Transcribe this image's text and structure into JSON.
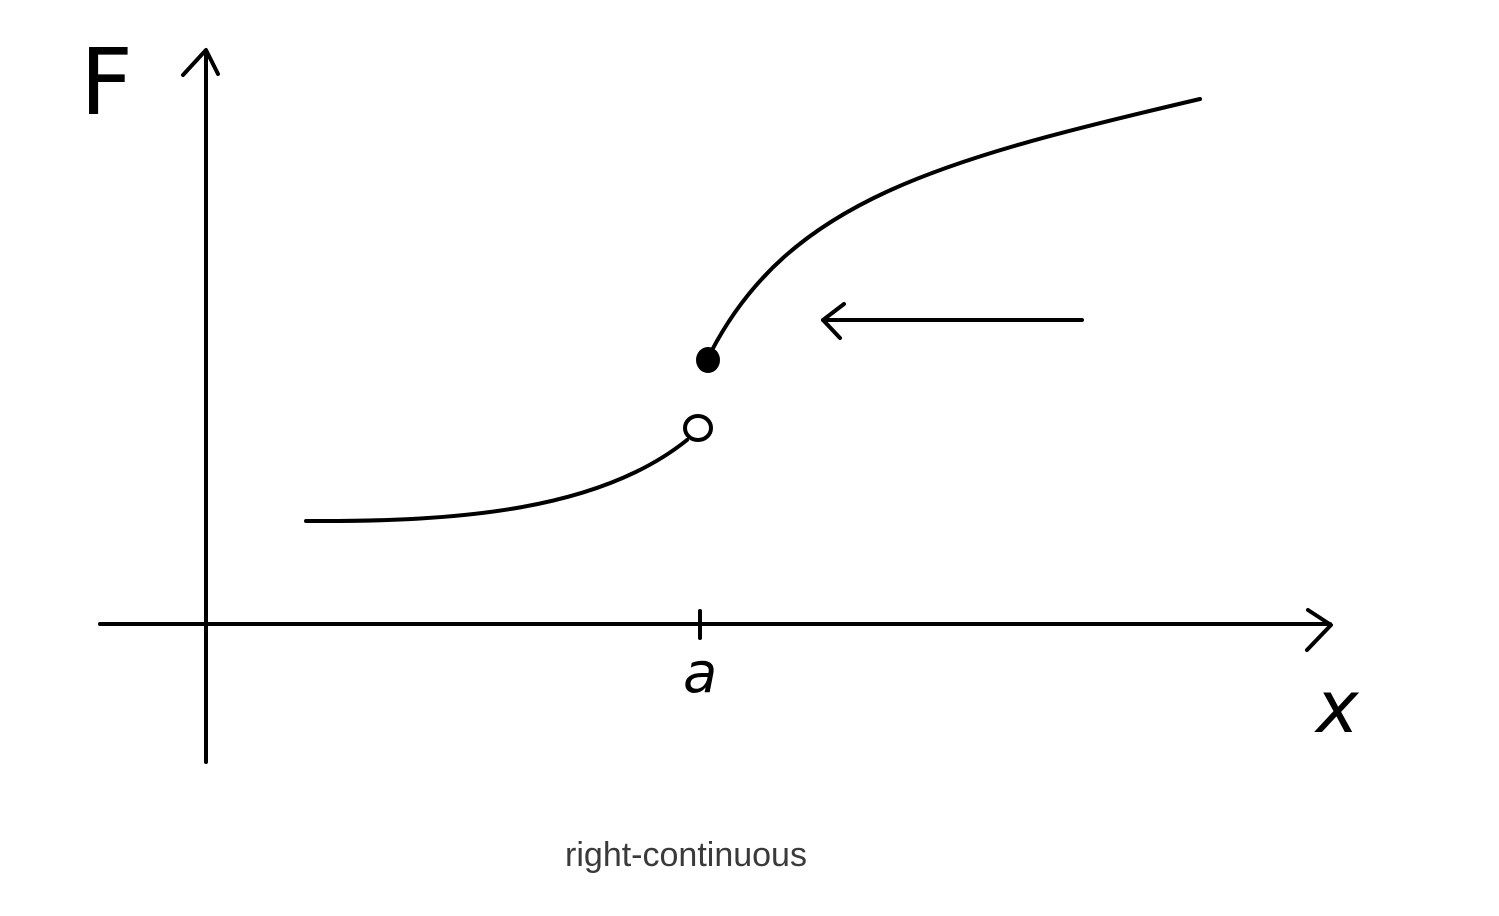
{
  "diagram": {
    "y_axis_label": "F",
    "x_axis_label": "x",
    "tick_label": "a",
    "caption": "right-continuous",
    "stroke_color": "#000000",
    "caption_color": "#3a3a3a"
  }
}
